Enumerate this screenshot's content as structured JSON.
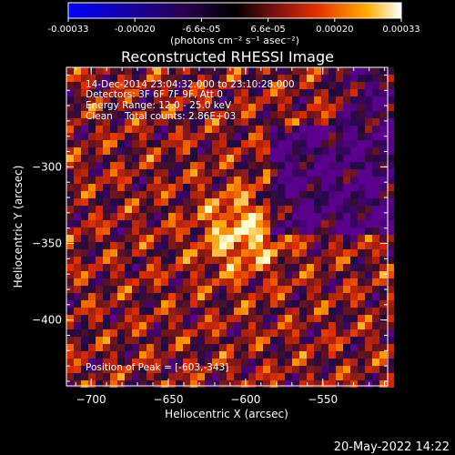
{
  "colorbar": {
    "ticks": [
      "-0.00033",
      "-0.00020",
      "-6.6e-05",
      "6.6e-05",
      "0.00020",
      "0.00033"
    ],
    "unit_label": "(photons cm⁻² s⁻¹ asec⁻²)",
    "range": [
      -0.00033,
      0.00033
    ]
  },
  "chart_data": {
    "type": "heatmap",
    "title": "Reconstructed RHESSI Image",
    "xlabel": "Heliocentric X (arcsec)",
    "ylabel": "Heliocentric Y (arcsec)",
    "xlim": [
      -716,
      -508
    ],
    "ylim": [
      -443,
      -235
    ],
    "xticks": [
      -700,
      -650,
      -600,
      -550
    ],
    "yticks": [
      -300,
      -350,
      -400
    ],
    "xtick_labels": [
      "−700",
      "−650",
      "−600",
      "−550"
    ],
    "ytick_labels": [
      "−300",
      "−350",
      "−400"
    ],
    "peak": [
      -603,
      -343
    ],
    "grid": false
  },
  "annotations": {
    "time": "14-Dec-2014 23:04:32.000 to 23:10:28.000",
    "detectors": "Detectors: 3F 6F 7F 9F, Att 0",
    "energy": "Energy Range: 12.0 - 25.0 keV",
    "clean": "Clean    Total counts: 2.86E+03",
    "peak_text": "Position of Peak = [-603,-343]"
  },
  "footer_date": "20-May-2022 14:22"
}
